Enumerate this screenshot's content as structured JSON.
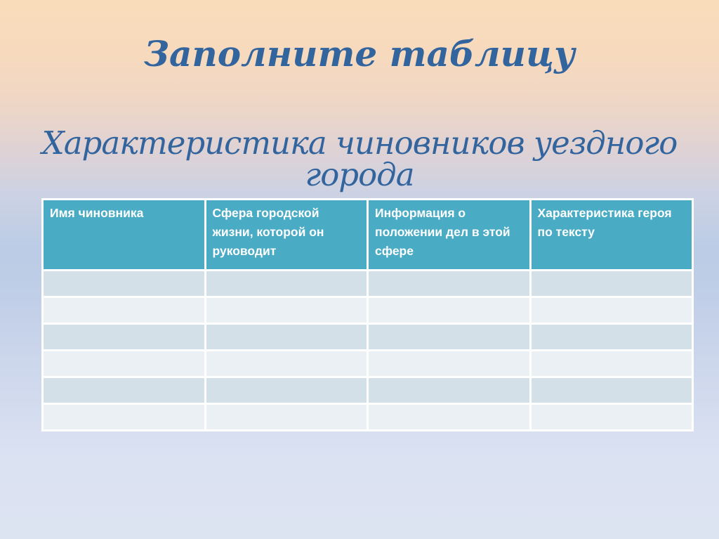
{
  "slide": {
    "title": "Заполните таблицу",
    "subtitle": "Характеристика чиновников уездного  города"
  },
  "table": {
    "headers": [
      "Имя чиновника",
      "Сфера городской жизни, которой он руководит",
      "Информация о положении дел в этой сфере",
      "Характеристика героя по тексту"
    ],
    "body_row_count": 6,
    "rows": [
      [
        "",
        "",
        "",
        ""
      ],
      [
        "",
        "",
        "",
        ""
      ],
      [
        "",
        "",
        "",
        ""
      ],
      [
        "",
        "",
        "",
        ""
      ],
      [
        "",
        "",
        "",
        ""
      ],
      [
        "",
        "",
        "",
        ""
      ]
    ]
  },
  "colors": {
    "title_color": "#32649e",
    "header_bg": "#4aabc5",
    "header_text": "#ffffff",
    "row_dark": "#d3e0e8",
    "row_light": "#eaf0f3",
    "border_color": "#ffffff",
    "bg_top": "#f9dcba",
    "bg_middle": "#bccce6",
    "bg_bottom": "#dce3f1"
  }
}
